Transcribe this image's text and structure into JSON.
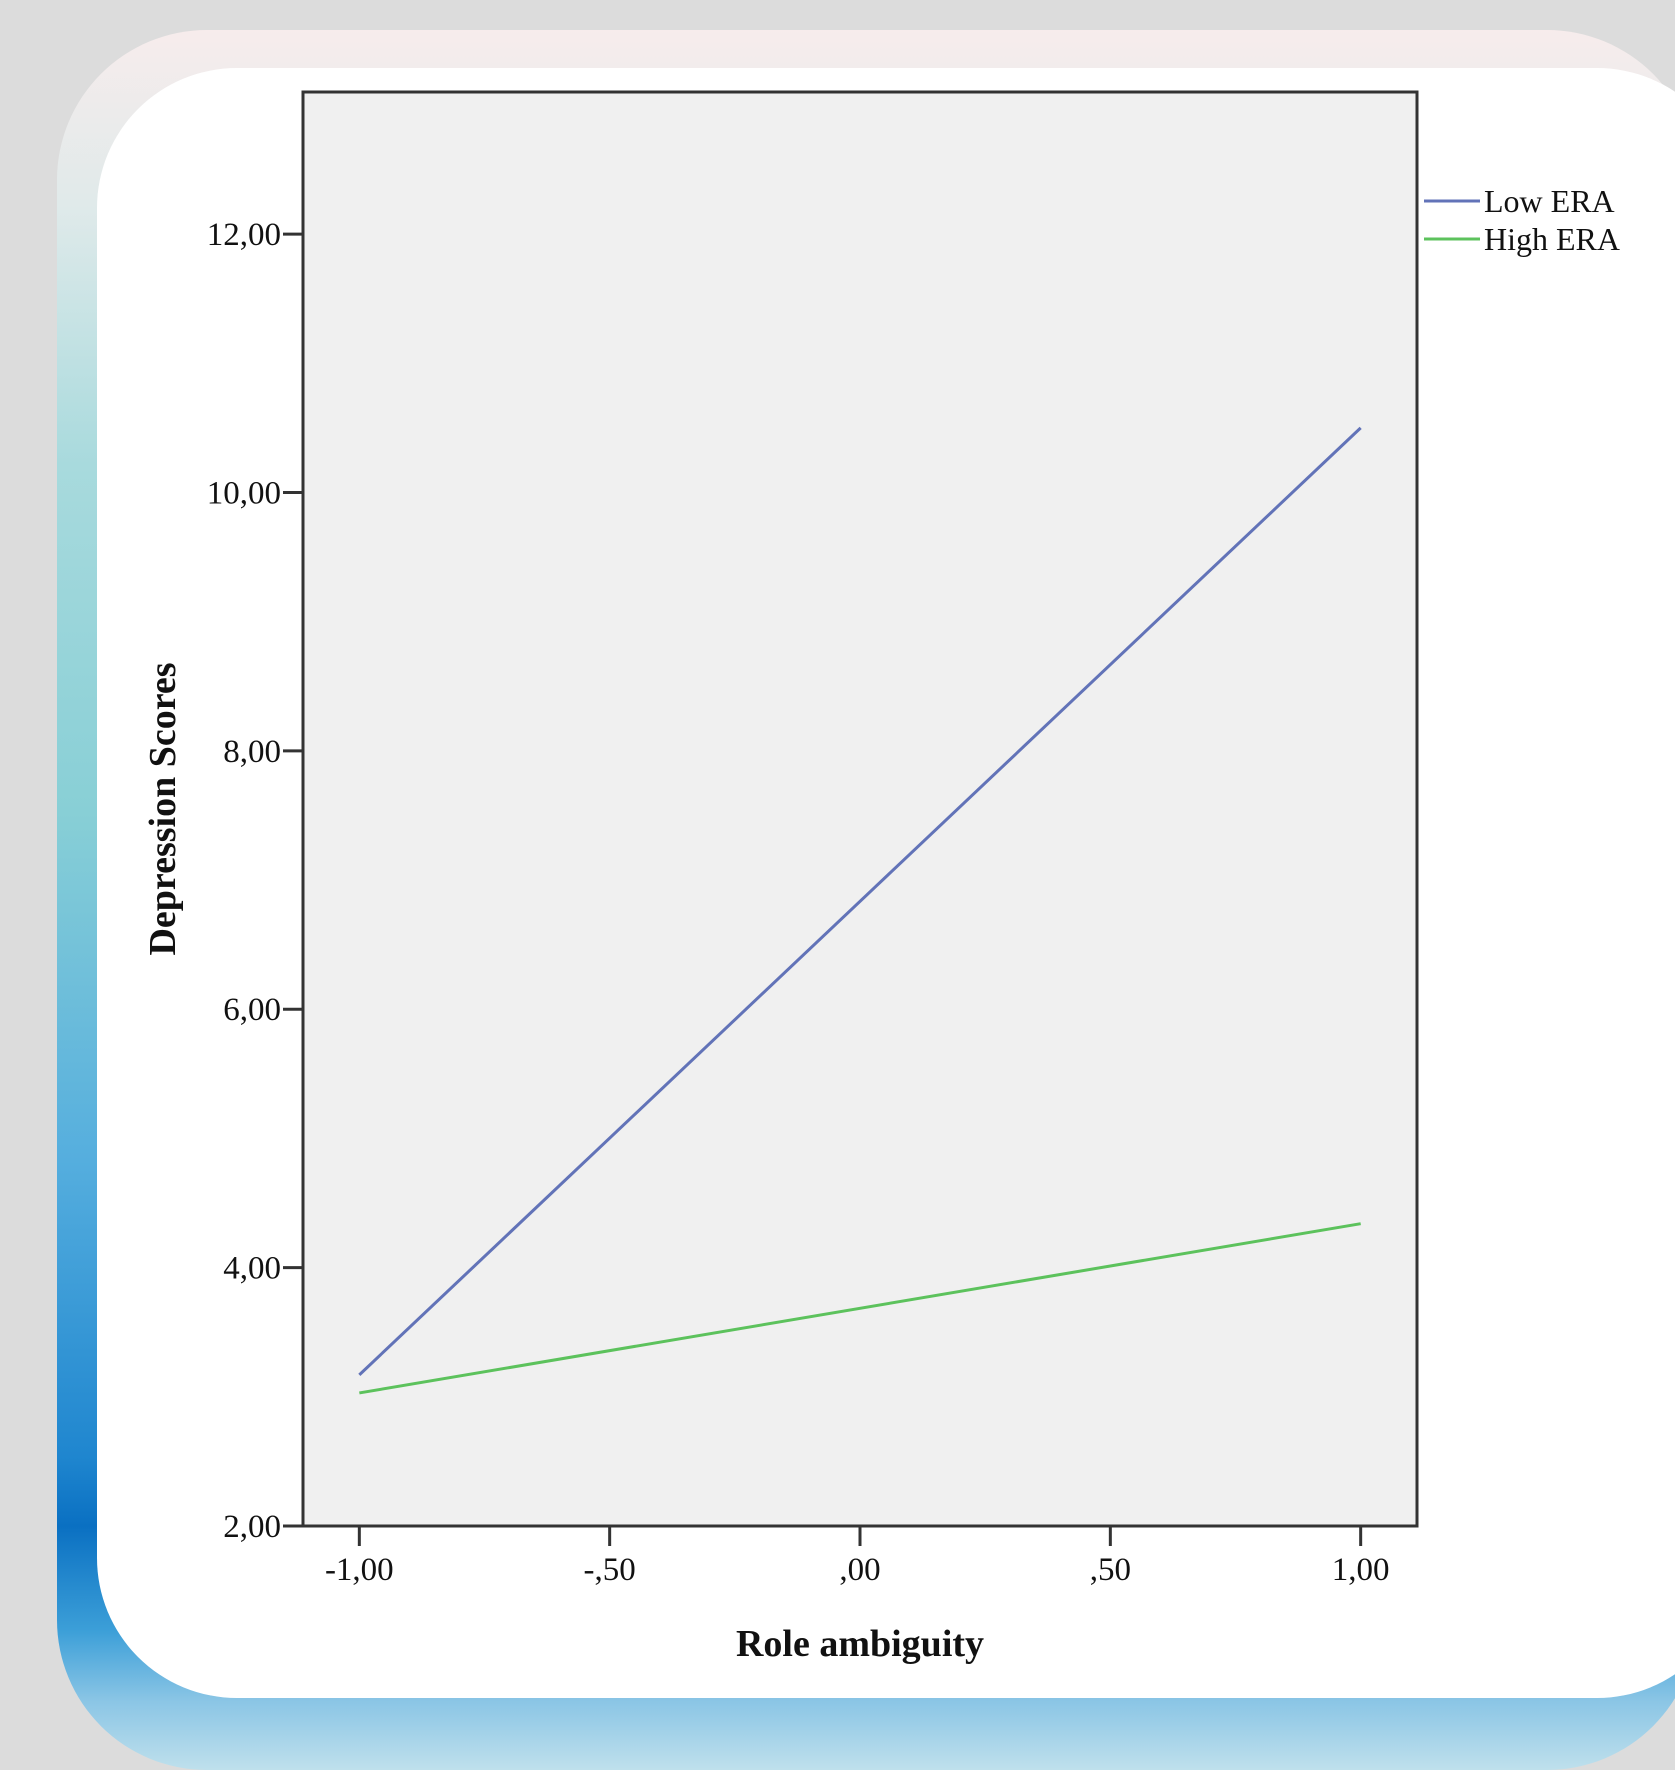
{
  "chart_data": {
    "type": "line",
    "xlabel": "Role ambiguity",
    "ylabel": "Depression Scores",
    "xlim": [
      -1.1125,
      1.1125
    ],
    "ylim": [
      2.0,
      13.1
    ],
    "x_ticks": [
      -1.0,
      -0.5,
      0.0,
      0.5,
      1.0
    ],
    "x_tick_labels": [
      "-1,00",
      "-,50",
      ",00",
      ",50",
      "1,00"
    ],
    "y_ticks": [
      2.0,
      4.0,
      6.0,
      8.0,
      10.0,
      12.0
    ],
    "y_tick_labels": [
      "2,00",
      "4,00",
      "6,00",
      "8,00",
      "10,00",
      "12,00"
    ],
    "grid": false,
    "legend_position": "right-top",
    "series": [
      {
        "name": "Low ERA",
        "color": "#6273b8",
        "x": [
          -1.0,
          1.0
        ],
        "y": [
          3.17,
          10.5
        ]
      },
      {
        "name": "High ERA",
        "color": "#5cc25c",
        "x": [
          -1.0,
          1.0
        ],
        "y": [
          3.03,
          4.34
        ]
      }
    ]
  }
}
